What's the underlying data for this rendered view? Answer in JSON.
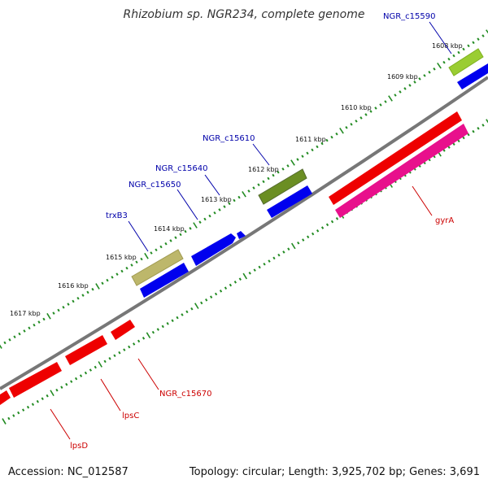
{
  "title": "Rhizobium sp. NGR234, complete genome",
  "footer": {
    "accession": "Accession: NC_012587",
    "stats": "Topology: circular; Length: 3,925,702 bp; Genes: 3,691"
  },
  "tick_labels": [
    "1608 kbp",
    "1609 kbp",
    "1610 kbp",
    "1611 kbp",
    "1612 kbp",
    "1613 kbp",
    "1614 kbp",
    "1615 kbp",
    "1616 kbp",
    "1617 kbp"
  ],
  "gene_labels_forward": [
    "NGR_c15590",
    "NGR_c15610",
    "NGR_c15640",
    "NGR_c15650",
    "trxB3"
  ],
  "gene_labels_reverse": [
    "gyrA",
    "NGR_c15670",
    "lpsC",
    "lpsD"
  ],
  "colors": {
    "forward_gene": "#0000ee",
    "reverse_gene": "#ee0000",
    "forward_label": "#0000aa",
    "reverse_label": "#cc0000",
    "tick": "#228b22",
    "backbone": "#888888",
    "gyrA_feature": "#e8108c",
    "olive_feature": "#6b8e23",
    "khaki_feature": "#bdb76b",
    "lime_feature": "#9acd32"
  }
}
